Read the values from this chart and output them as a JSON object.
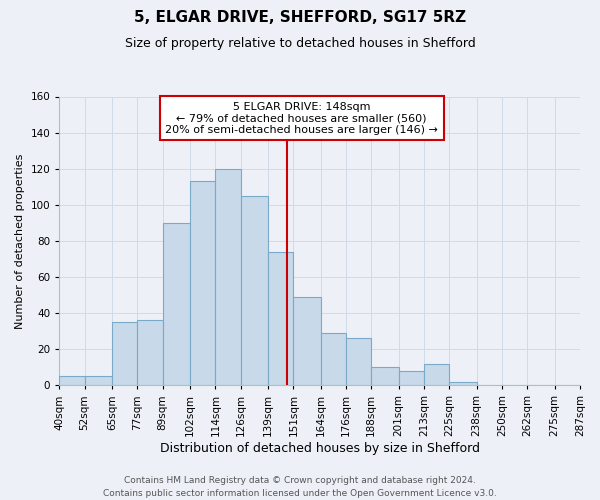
{
  "title": "5, ELGAR DRIVE, SHEFFORD, SG17 5RZ",
  "subtitle": "Size of property relative to detached houses in Shefford",
  "xlabel": "Distribution of detached houses by size in Shefford",
  "ylabel": "Number of detached properties",
  "bin_labels": [
    "40sqm",
    "52sqm",
    "65sqm",
    "77sqm",
    "89sqm",
    "102sqm",
    "114sqm",
    "126sqm",
    "139sqm",
    "151sqm",
    "164sqm",
    "176sqm",
    "188sqm",
    "201sqm",
    "213sqm",
    "225sqm",
    "238sqm",
    "250sqm",
    "262sqm",
    "275sqm",
    "287sqm"
  ],
  "bar_heights": [
    5,
    5,
    35,
    36,
    90,
    113,
    120,
    105,
    74,
    49,
    29,
    26,
    10,
    8,
    12,
    2,
    0,
    0,
    0,
    0
  ],
  "bar_color": "#c8d9ea",
  "bar_edge_color": "#7aaac8",
  "vline_x": 148,
  "vline_color": "#cc0000",
  "annotation_line1": "5 ELGAR DRIVE: 148sqm",
  "annotation_line2": "← 79% of detached houses are smaller (560)",
  "annotation_line3": "20% of semi-detached houses are larger (146) →",
  "annotation_box_color": "#ffffff",
  "annotation_box_edge": "#cc0000",
  "ylim": [
    0,
    160
  ],
  "yticks": [
    0,
    20,
    40,
    60,
    80,
    100,
    120,
    140,
    160
  ],
  "grid_color": "#d0dae8",
  "background_color": "#edf1f7",
  "footer_line1": "Contains HM Land Registry data © Crown copyright and database right 2024.",
  "footer_line2": "Contains public sector information licensed under the Open Government Licence v3.0.",
  "title_fontsize": 11,
  "subtitle_fontsize": 9,
  "xlabel_fontsize": 9,
  "ylabel_fontsize": 8,
  "tick_fontsize": 7.5,
  "annotation_fontsize": 8,
  "footer_fontsize": 6.5
}
